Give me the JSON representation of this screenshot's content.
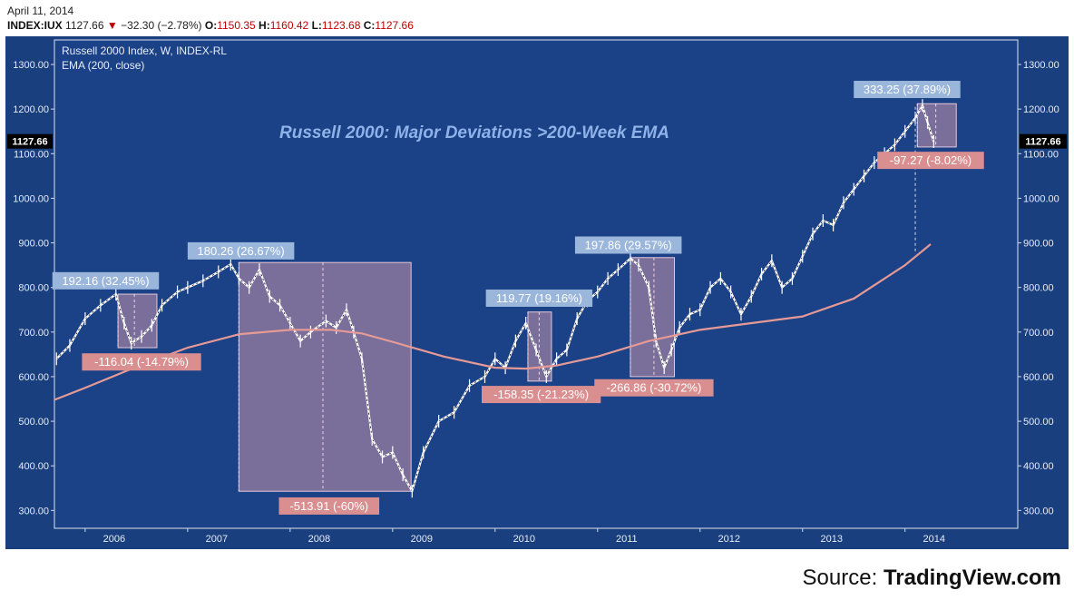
{
  "header": {
    "date": "April 11, 2014",
    "symbol": "INDEX:IUX",
    "last": "1127.66",
    "change": "−32.30 (−2.78%)",
    "open_label": "O:",
    "open": "1150.35",
    "high_label": "H:",
    "high": "1160.42",
    "low_label": "L:",
    "low": "1123.68",
    "close_label": "C:",
    "close": "1127.66"
  },
  "source": {
    "prefix": "Source: ",
    "name": "TradingView.com"
  },
  "colors": {
    "plot_bg": "#1b4187",
    "frame_bg": "#1a3f7e",
    "ema": "#e69a96",
    "box_fill": "#b48aa8",
    "label_blue": "#9ab6db",
    "label_red": "#d98f90",
    "title": "#8fb3e8"
  },
  "chart_data": {
    "type": "line",
    "title": "Russell 2000: Major Deviations >200-Week EMA",
    "legend": [
      "Russell 2000 Index, W, INDEX-RL",
      "EMA (200, close)"
    ],
    "last_price_label": "1127.66",
    "ylim": [
      260,
      1355
    ],
    "xlim": [
      2005.7,
      2015.1
    ],
    "y_ticks": [
      "300.00",
      "400.00",
      "500.00",
      "600.00",
      "700.00",
      "800.00",
      "900.00",
      "1000.00",
      "1100.00",
      "1200.00",
      "1300.00"
    ],
    "x_ticks": [
      "2006",
      "2007",
      "2008",
      "2009",
      "2010",
      "2011",
      "2012",
      "2013",
      "2014"
    ],
    "price": {
      "name": "Russell 2000 Index",
      "x": [
        2005.72,
        2005.85,
        2006.0,
        2006.15,
        2006.3,
        2006.38,
        2006.45,
        2006.55,
        2006.65,
        2006.75,
        2006.9,
        2007.0,
        2007.15,
        2007.3,
        2007.42,
        2007.5,
        2007.6,
        2007.7,
        2007.8,
        2007.9,
        2008.0,
        2008.1,
        2008.2,
        2008.35,
        2008.45,
        2008.55,
        2008.62,
        2008.7,
        2008.8,
        2008.9,
        2009.0,
        2009.1,
        2009.19,
        2009.3,
        2009.45,
        2009.6,
        2009.75,
        2009.9,
        2010.0,
        2010.1,
        2010.2,
        2010.3,
        2010.4,
        2010.5,
        2010.6,
        2010.7,
        2010.8,
        2010.9,
        2011.0,
        2011.1,
        2011.2,
        2011.32,
        2011.4,
        2011.5,
        2011.57,
        2011.65,
        2011.72,
        2011.8,
        2011.9,
        2012.0,
        2012.1,
        2012.2,
        2012.3,
        2012.4,
        2012.5,
        2012.6,
        2012.7,
        2012.8,
        2012.9,
        2013.0,
        2013.1,
        2013.2,
        2013.3,
        2013.4,
        2013.5,
        2013.6,
        2013.7,
        2013.8,
        2013.9,
        2014.0,
        2014.1,
        2014.17,
        2014.22,
        2014.28
      ],
      "y": [
        640,
        670,
        730,
        760,
        785,
        720,
        675,
        690,
        715,
        760,
        790,
        800,
        815,
        835,
        852,
        820,
        800,
        840,
        780,
        760,
        720,
        680,
        700,
        725,
        710,
        750,
        700,
        640,
        460,
        420,
        430,
        380,
        343,
        430,
        500,
        520,
        580,
        600,
        640,
        620,
        680,
        720,
        660,
        600,
        640,
        660,
        730,
        770,
        790,
        820,
        840,
        865,
        850,
        800,
        680,
        620,
        660,
        710,
        740,
        750,
        800,
        820,
        790,
        740,
        780,
        830,
        860,
        800,
        820,
        870,
        920,
        950,
        940,
        990,
        1020,
        1050,
        1080,
        1100,
        1120,
        1150,
        1180,
        1208,
        1170,
        1127
      ]
    },
    "ema": {
      "name": "EMA (200, close)",
      "x": [
        2005.7,
        2006.0,
        2006.5,
        2007.0,
        2007.5,
        2008.0,
        2008.4,
        2008.7,
        2009.0,
        2009.5,
        2010.0,
        2010.3,
        2010.6,
        2011.0,
        2011.5,
        2012.0,
        2012.5,
        2013.0,
        2013.5,
        2014.0,
        2014.25
      ],
      "y": [
        548,
        575,
        622,
        665,
        695,
        705,
        705,
        697,
        678,
        645,
        620,
        618,
        625,
        645,
        680,
        705,
        720,
        735,
        775,
        850,
        897
      ]
    },
    "annotations": [
      {
        "box_x": [
          2006.32,
          2006.7
        ],
        "box_y": [
          665,
          785
        ],
        "mid_x": 2006.48,
        "up_label": "192.16 (32.45%)",
        "up_x": 2006.2,
        "up_y": 815,
        "down_label": "-116.04 (-14.79%)",
        "down_x": 2006.55,
        "down_y": 633
      },
      {
        "box_x": [
          2007.5,
          2009.18
        ],
        "box_y": [
          343,
          856
        ],
        "mid_x": 2008.32,
        "up_label": "180.26 (26.67%)",
        "up_x": 2007.52,
        "up_y": 882,
        "down_label": "-513.91 (-60%)",
        "down_x": 2008.38,
        "down_y": 310
      },
      {
        "box_x": [
          2010.32,
          2010.55
        ],
        "box_y": [
          590,
          745
        ],
        "mid_x": 2010.43,
        "up_label": "119.77 (19.16%)",
        "up_x": 2010.43,
        "up_y": 776,
        "down_label": "-158.35 (-21.23%)",
        "down_x": 2010.45,
        "down_y": 560
      },
      {
        "box_x": [
          2011.32,
          2011.75
        ],
        "box_y": [
          600,
          867
        ],
        "mid_x": 2011.55,
        "up_label": "197.86 (29.57%)",
        "up_x": 2011.3,
        "up_y": 895,
        "down_label": "-266.86 (-30.72%)",
        "down_x": 2011.55,
        "down_y": 575
      },
      {
        "box_x": [
          2014.12,
          2014.5
        ],
        "box_y": [
          1115,
          1212
        ],
        "mid_x": 2014.3,
        "up_label": "333.25 (37.89%)",
        "up_x": 2014.02,
        "up_y": 1244,
        "down_label": "-97.27 (-8.02%)",
        "down_x": 2014.25,
        "down_y": 1085
      }
    ]
  }
}
